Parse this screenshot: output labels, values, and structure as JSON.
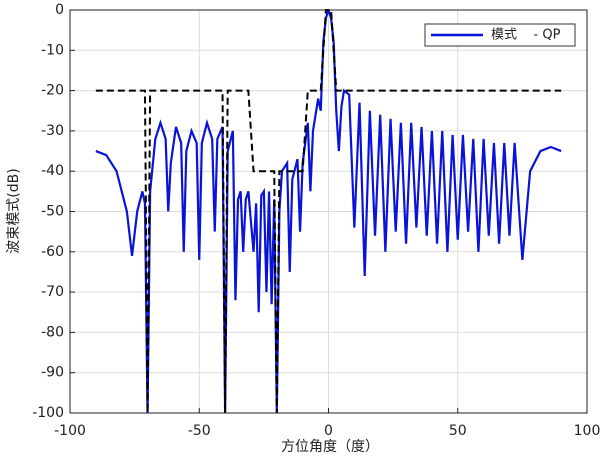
{
  "chart_data": {
    "type": "line",
    "xlabel": "方位角度（度）",
    "ylabel": "波束模式(dB)",
    "xlim": [
      -100,
      100
    ],
    "xticks": [
      -100,
      -50,
      0,
      50,
      100
    ],
    "ylim": [
      -100,
      0
    ],
    "yticks": [
      -100,
      -90,
      -80,
      -70,
      -60,
      -50,
      -40,
      -30,
      -20,
      -10,
      0
    ],
    "grid": true,
    "legend": "upper right",
    "series": [
      {
        "name": "模式    - QP",
        "color": "#0a14d8",
        "line_style": "solid",
        "x": [
          -90,
          -86,
          -82,
          -78,
          -76,
          -74,
          -72,
          -71,
          -70,
          -69,
          -67,
          -65,
          -63,
          -62,
          -61,
          -59,
          -57,
          -56,
          -55,
          -53,
          -51,
          -50,
          -49,
          -47,
          -45,
          -44,
          -43,
          -41,
          -40,
          -39,
          -37,
          -36,
          -35,
          -34,
          -33,
          -32,
          -31,
          -29,
          -28,
          -27,
          -26,
          -25,
          -24,
          -23,
          -22,
          -21,
          -20,
          -19,
          -18,
          -16,
          -15,
          -14,
          -12,
          -11,
          -10,
          -8,
          -7,
          -6,
          -4,
          -3,
          -2,
          -1,
          0,
          1,
          2,
          3,
          4,
          5,
          6,
          8,
          10,
          12,
          14,
          16,
          18,
          20,
          22,
          24,
          26,
          28,
          30,
          32,
          34,
          36,
          38,
          40,
          42,
          44,
          46,
          48,
          50,
          52,
          54,
          56,
          58,
          60,
          62,
          64,
          66,
          68,
          70,
          72,
          75,
          78,
          82,
          86,
          90
        ],
        "values": [
          -35,
          -36,
          -40,
          -50,
          -61,
          -50,
          -45,
          -48,
          -100,
          -45,
          -32,
          -28,
          -32,
          -50,
          -38,
          -29,
          -33,
          -60,
          -35,
          -30,
          -33,
          -62,
          -33,
          -28,
          -32,
          -55,
          -32,
          -29,
          -100,
          -35,
          -30,
          -72,
          -47,
          -45,
          -60,
          -47,
          -45,
          -60,
          -48,
          -75,
          -46,
          -45,
          -70,
          -45,
          -73,
          -47,
          -100,
          -50,
          -40,
          -38,
          -65,
          -42,
          -37,
          -55,
          -38,
          -28,
          -45,
          -30,
          -22,
          -25,
          -8,
          -2,
          0,
          -2,
          -8,
          -25,
          -35,
          -24,
          -20,
          -21,
          -54,
          -23,
          -66,
          -25,
          -56,
          -26,
          -60,
          -27,
          -55,
          -28,
          -58,
          -28,
          -54,
          -29,
          -56,
          -30,
          -58,
          -30,
          -60,
          -31,
          -57,
          -31,
          -55,
          -32,
          -60,
          -32,
          -56,
          -33,
          -58,
          -33,
          -56,
          -33,
          -62,
          -40,
          -35,
          -34,
          -35
        ]
      },
      {
        "color": "#000000",
        "line_style": "dashed",
        "x": [
          -90,
          -71,
          -70,
          -69,
          -41,
          -40,
          -39,
          -31,
          -29,
          -21,
          -20,
          -19,
          -10,
          -8,
          -3,
          -1,
          1,
          3,
          6,
          90
        ],
        "values": [
          -20,
          -20,
          -100,
          -20,
          -20,
          -100,
          -20,
          -20,
          -40,
          -40,
          -100,
          -40,
          -40,
          -20,
          -20,
          0,
          0,
          -20,
          -20,
          -20
        ]
      }
    ]
  }
}
